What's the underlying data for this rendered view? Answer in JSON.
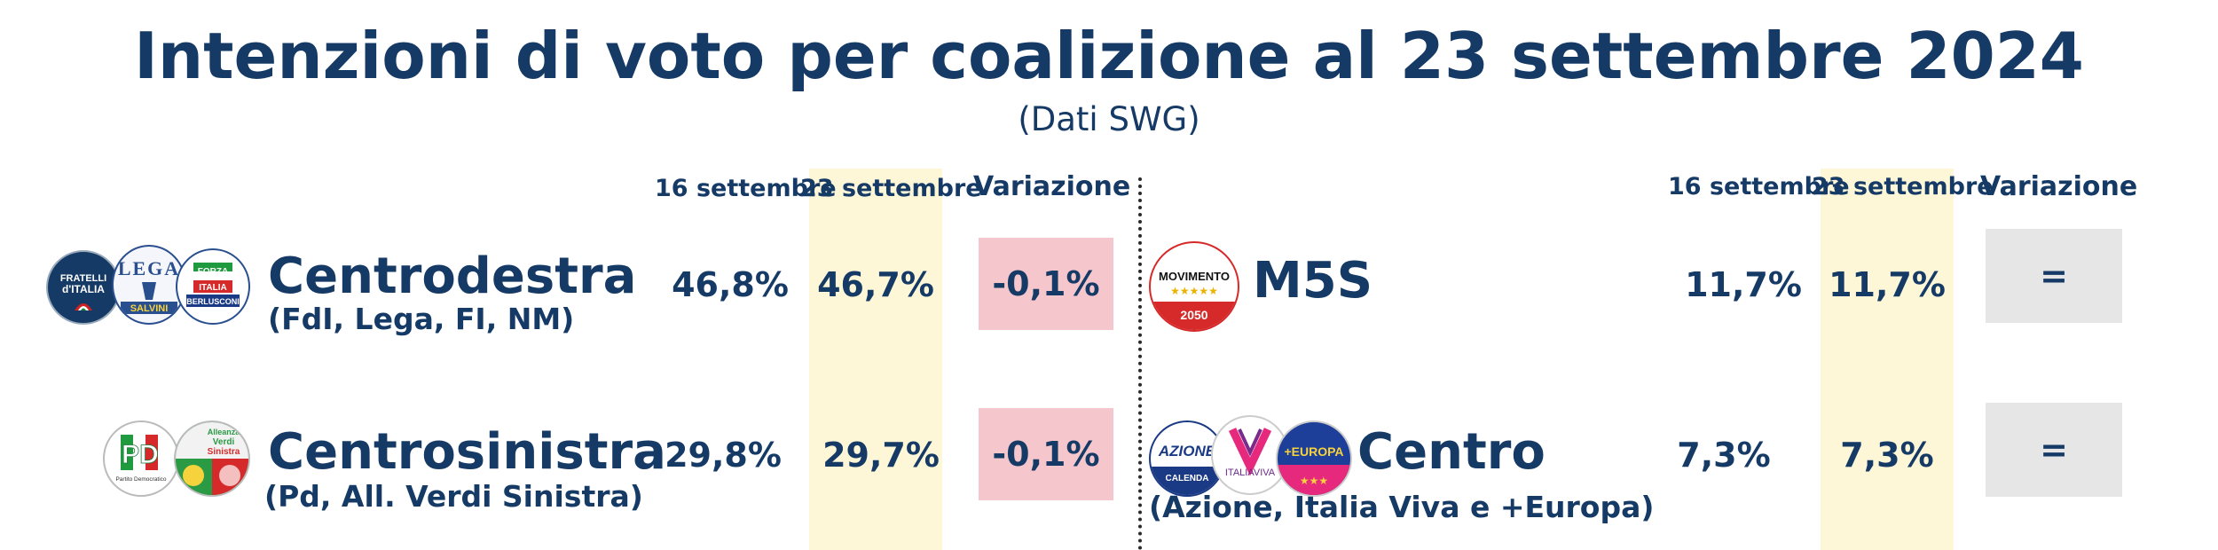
{
  "title": "Intenzioni di voto per coalizione al 23 settembre 2024",
  "subtitle": "(Dati SWG)",
  "headers": {
    "date1": "16 settembre",
    "date2": "23 settembre",
    "variation": "Variazione"
  },
  "left": {
    "rows": [
      {
        "name": "Centrodestra",
        "sub": "(FdI, Lega, FI, NM)",
        "v1": "46,8%",
        "v2": "46,7%",
        "change": "-0,1%"
      },
      {
        "name": "Centrosinistra",
        "sub": "(Pd, All. Verdi Sinistra)",
        "v1": "29,8%",
        "v2": "29,7%",
        "change": "-0,1%"
      }
    ]
  },
  "right": {
    "rows": [
      {
        "name": "M5S",
        "sub": "",
        "v1": "11,7%",
        "v2": "11,7%",
        "change": "="
      },
      {
        "name": "Centro",
        "sub": "(Azione, Italia Viva e +Europa)",
        "v1": "7,3%",
        "v2": "7,3%",
        "change": "="
      }
    ]
  },
  "logos": {
    "fdi": [
      "FRATELLI",
      "d'ITALIA"
    ],
    "lega": [
      "LEGA",
      "SALVINI"
    ],
    "fi": [
      "FORZA",
      "ITALIA",
      "BERLUSCONI"
    ],
    "pd": [
      "PD",
      "Partito Democratico"
    ],
    "avs": [
      "Alleanza",
      "Verdi",
      "Sinistra"
    ],
    "m5s": [
      "MOVIMENTO",
      "2050"
    ],
    "azione": [
      "AZIONE",
      "CALENDA"
    ],
    "iv": [
      "ITALIAVIVA"
    ],
    "europa": [
      "+EUROPA"
    ]
  },
  "colors": {
    "text": "#163a66",
    "highlight": "#fdf7d7",
    "negative_box": "#f5c6cb",
    "neutral_box": "#e6e6e6"
  }
}
